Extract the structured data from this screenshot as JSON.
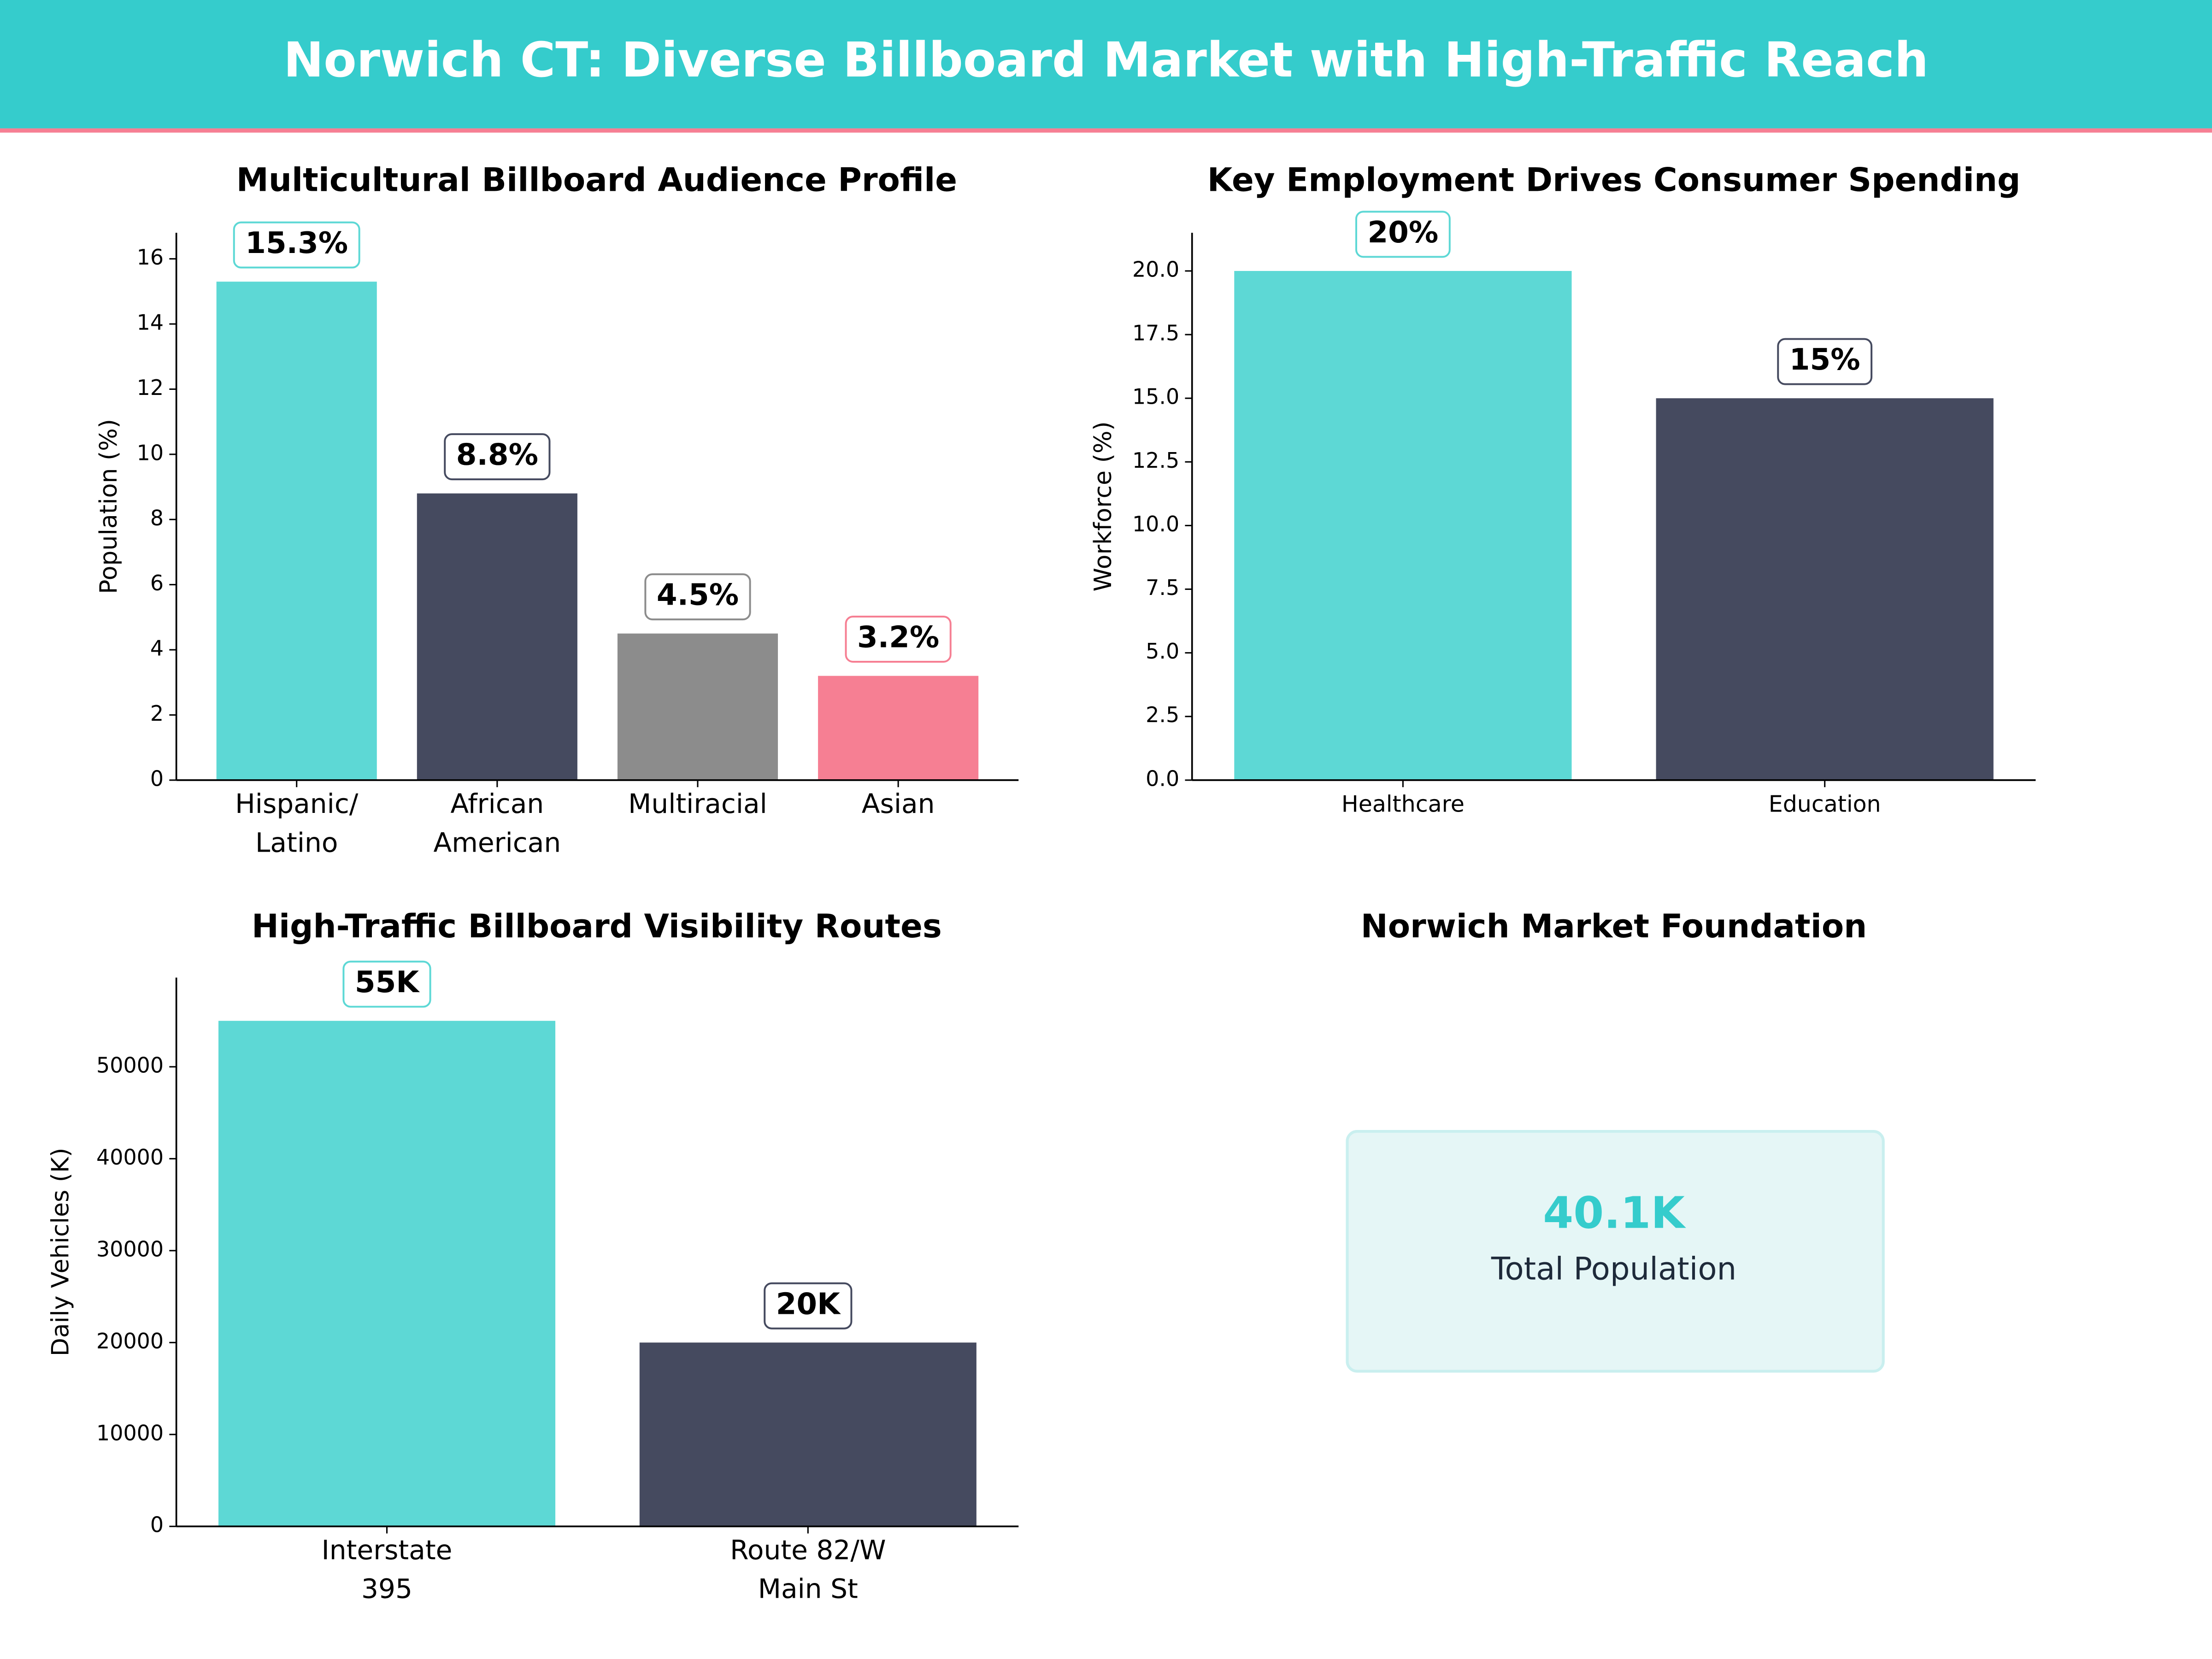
{
  "header": {
    "title": "Norwich CT: Diverse Billboard Market with High-Traffic Reach"
  },
  "chart_data": [
    {
      "type": "bar",
      "title": "Multicultural Billboard Audience Profile",
      "y_label": "Population (%)",
      "categories": [
        "Hispanic/\nLatino",
        "African\nAmerican",
        "Multiracial",
        "Asian"
      ],
      "values": [
        15.3,
        8.8,
        4.5,
        3.2
      ],
      "value_labels": [
        "15.3%",
        "8.8%",
        "4.5%",
        "3.2%"
      ],
      "colors": [
        "#5dd8d5",
        "#454a5f",
        "#8c8c8c",
        "#f67f93"
      ],
      "ylim": [
        0,
        16.8
      ],
      "yticks": [
        0,
        2,
        4,
        6,
        8,
        10,
        12,
        14,
        16
      ]
    },
    {
      "type": "bar",
      "title": "Key Employment Drives Consumer Spending",
      "y_label": "Workforce (%)",
      "categories": [
        "Healthcare",
        "Education"
      ],
      "values": [
        20,
        15
      ],
      "value_labels": [
        "20%",
        "15%"
      ],
      "colors": [
        "#5dd8d5",
        "#454a5f"
      ],
      "ylim": [
        0,
        21.5
      ],
      "yticks": [
        {
          "value": 0,
          "label": "0.0"
        },
        {
          "value": 2.5,
          "label": "2.5"
        },
        {
          "value": 5,
          "label": "5.0"
        },
        {
          "value": 7.5,
          "label": "7.5"
        },
        {
          "value": 10,
          "label": "10.0"
        },
        {
          "value": 12.5,
          "label": "12.5"
        },
        {
          "value": 15,
          "label": "15.0"
        },
        {
          "value": 17.5,
          "label": "17.5"
        },
        {
          "value": 20,
          "label": "20.0"
        }
      ]
    },
    {
      "type": "bar",
      "title": "High-Traffic Billboard Visibility Routes",
      "y_label": "Daily Vehicles (K)",
      "categories": [
        "Interstate\n395",
        "Route 82/W\nMain St"
      ],
      "values": [
        55000,
        20000
      ],
      "value_labels": [
        "55K",
        "20K"
      ],
      "colors": [
        "#5dd8d5",
        "#454a5f"
      ],
      "ylim": [
        0,
        59700
      ],
      "yticks": [
        0,
        10000,
        20000,
        30000,
        40000,
        50000
      ]
    }
  ],
  "kpi": {
    "title": "Norwich Market Foundation",
    "value": "40.1K",
    "label": "Total Population"
  }
}
